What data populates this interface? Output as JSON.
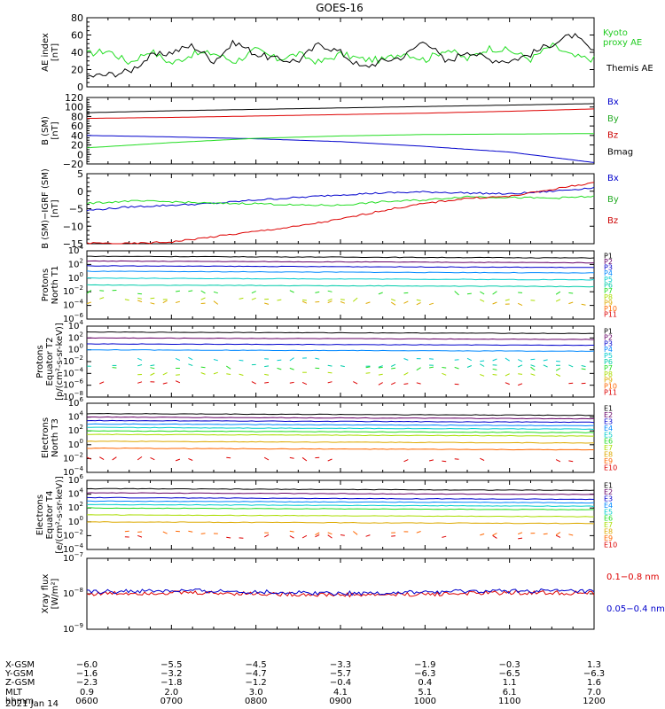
{
  "title": "GOES-16",
  "colors": {
    "black": "#000000",
    "green": "#22dd22",
    "blue": "#0000cc",
    "red": "#dd0000",
    "white": "#ffffff"
  },
  "chart_data": [
    {
      "type": "line",
      "ylabel_lines": [
        "AE index",
        "[nT]"
      ],
      "ylim": [
        0,
        80
      ],
      "yticks": [
        "0",
        "20",
        "40",
        "60",
        "80"
      ],
      "legend": [
        {
          "text": "Kyoto",
          "color": "#22cc22"
        },
        {
          "text": "proxy AE",
          "color": "#22cc22"
        },
        {
          "text": "Themis AE",
          "color": "#000000"
        }
      ],
      "series": [
        {
          "name": "Kyoto proxy AE",
          "color": "#22dd22",
          "x": [
            "0600",
            "0615",
            "0630",
            "0645",
            "0700",
            "0715",
            "0730",
            "0745",
            "0800",
            "0815",
            "0830",
            "0845",
            "0900",
            "0915",
            "0930",
            "0945",
            "1000",
            "1015",
            "1030",
            "1045",
            "1100",
            "1115",
            "1130",
            "1145",
            "1200"
          ],
          "values": [
            38,
            42,
            28,
            42,
            27,
            38,
            39,
            29,
            43,
            32,
            38,
            28,
            38,
            32,
            31,
            40,
            31,
            44,
            32,
            45,
            42,
            32,
            48,
            35,
            32
          ]
        },
        {
          "name": "Themis AE",
          "color": "#000000",
          "x": [
            "0600",
            "0615",
            "0630",
            "0645",
            "0700",
            "0715",
            "0730",
            "0745",
            "0800",
            "0815",
            "0830",
            "0845",
            "0900",
            "0915",
            "0930",
            "0945",
            "1000",
            "1015",
            "1030",
            "1045",
            "1100",
            "1115",
            "1130",
            "1145",
            "1200"
          ],
          "values": [
            12,
            14,
            18,
            35,
            40,
            48,
            30,
            52,
            38,
            32,
            30,
            50,
            40,
            22,
            30,
            35,
            55,
            28,
            42,
            32,
            30,
            38,
            50,
            60,
            40
          ]
        }
      ]
    },
    {
      "type": "line",
      "ylabel_lines": [
        "B (SM)",
        "[nT]"
      ],
      "ylim": [
        -20,
        120
      ],
      "yticks": [
        "−20",
        "0",
        "20",
        "40",
        "60",
        "80",
        "100",
        "120"
      ],
      "legend": [
        {
          "text": "Bx",
          "color": "#0000cc"
        },
        {
          "text": "By",
          "color": "#22aa22"
        },
        {
          "text": "Bz",
          "color": "#cc0000"
        },
        {
          "text": "Bmag",
          "color": "#000000"
        }
      ],
      "series": [
        {
          "name": "Bx",
          "color": "#0000cc",
          "x": [
            "0600",
            "0700",
            "0800",
            "0900",
            "1000",
            "1100",
            "1200"
          ],
          "values": [
            40,
            37,
            33,
            27,
            17,
            5,
            -17
          ]
        },
        {
          "name": "By",
          "color": "#22dd22",
          "x": [
            "0600",
            "0700",
            "0800",
            "0900",
            "1000",
            "1100",
            "1200"
          ],
          "values": [
            14,
            25,
            34,
            39,
            42,
            43,
            44
          ]
        },
        {
          "name": "Bz",
          "color": "#dd0000",
          "x": [
            "0600",
            "0700",
            "0800",
            "0900",
            "1000",
            "1100",
            "1200"
          ],
          "values": [
            76,
            78,
            81,
            84,
            87,
            91,
            96
          ]
        },
        {
          "name": "Bmag",
          "color": "#000000",
          "x": [
            "0600",
            "0700",
            "0800",
            "0900",
            "1000",
            "1100",
            "1200"
          ],
          "values": [
            88,
            92,
            95,
            98,
            101,
            104,
            107
          ]
        }
      ]
    },
    {
      "type": "line",
      "ylabel_lines": [
        "B (SM)−IGRF (SM)",
        "[nT]"
      ],
      "ylim": [
        -15,
        5
      ],
      "yticks": [
        "−15",
        "−10",
        "−5",
        "0",
        "5"
      ],
      "legend": [
        {
          "text": "Bx",
          "color": "#0000cc"
        },
        {
          "text": "By",
          "color": "#22aa22"
        },
        {
          "text": "Bz",
          "color": "#cc0000"
        }
      ],
      "series": [
        {
          "name": "Bx",
          "color": "#0000cc",
          "x": [
            "0600",
            "0630",
            "0700",
            "0730",
            "0800",
            "0830",
            "0900",
            "0930",
            "1000",
            "1030",
            "1100",
            "1130",
            "1200"
          ],
          "values": [
            -5.5,
            -4.5,
            -4,
            -3.5,
            -2.5,
            -1.8,
            -1,
            -0.5,
            -0.2,
            -0.5,
            -0.8,
            0,
            1
          ]
        },
        {
          "name": "By",
          "color": "#22dd22",
          "x": [
            "0600",
            "0630",
            "0700",
            "0730",
            "0800",
            "0830",
            "0900",
            "0930",
            "1000",
            "1030",
            "1100",
            "1130",
            "1200"
          ],
          "values": [
            -3.5,
            -2.8,
            -3,
            -3.5,
            -3.5,
            -4,
            -4,
            -3,
            -2.5,
            -1.5,
            -1.8,
            -2,
            -1.5
          ]
        },
        {
          "name": "Bz",
          "color": "#dd0000",
          "x": [
            "0600",
            "0630",
            "0700",
            "0730",
            "0800",
            "0830",
            "0900",
            "0930",
            "1000",
            "1030",
            "1100",
            "1130",
            "1200"
          ],
          "values": [
            -14.8,
            -15,
            -14.5,
            -13,
            -11.5,
            -10,
            -8,
            -5.5,
            -3.5,
            -2,
            -1.5,
            0.5,
            2.5
          ]
        }
      ]
    },
    {
      "type": "line",
      "log": true,
      "ylabel_lines": [
        "Protons",
        "North T1"
      ],
      "ylim_exp": [
        -6,
        4
      ],
      "ytick_exps": [
        -6,
        -4,
        -2,
        0,
        2,
        4
      ],
      "channels": [
        {
          "label": "P1",
          "color": "#000000",
          "level": 3.2
        },
        {
          "label": "P2",
          "color": "#660066",
          "level": 2.5
        },
        {
          "label": "P3",
          "color": "#0000cc",
          "level": 1.8
        },
        {
          "label": "P4",
          "color": "#0088ff",
          "level": 1.0
        },
        {
          "label": "P5",
          "color": "#00cccc",
          "level": 0.0
        },
        {
          "label": "P6",
          "color": "#00ccaa",
          "level": -1.0
        },
        {
          "label": "P7",
          "color": "#22dd22",
          "level": -2.0
        },
        {
          "label": "P8",
          "color": "#aadd00",
          "level": -3.0
        },
        {
          "label": "P9",
          "color": "#ddaa00",
          "level": -3.5
        },
        {
          "label": "P10",
          "color": "#ff6600",
          "level": null
        },
        {
          "label": "P11",
          "color": "#dd0000",
          "level": null
        }
      ]
    },
    {
      "type": "line",
      "log": true,
      "ylabel_lines": [
        "Protons",
        "Equator T2",
        "[p/(cm²-s-sr-keV)]"
      ],
      "ylim_exp": [
        -8,
        4
      ],
      "ytick_exps": [
        -8,
        -6,
        -4,
        -2,
        0,
        2,
        4
      ],
      "channels": [
        {
          "label": "P1",
          "color": "#000000",
          "level": 3.0
        },
        {
          "label": "P2",
          "color": "#660066",
          "level": 2.0
        },
        {
          "label": "P3",
          "color": "#0000cc",
          "level": 1.0
        },
        {
          "label": "P4",
          "color": "#0088ff",
          "level": 0.0
        },
        {
          "label": "P5",
          "color": "#00cccc",
          "level": -1.5
        },
        {
          "label": "P6",
          "color": "#00ccaa",
          "level": -2.5
        },
        {
          "label": "P7",
          "color": "#22dd22",
          "level": -3.0
        },
        {
          "label": "P8",
          "color": "#aadd00",
          "level": -4.0
        },
        {
          "label": "P9",
          "color": "#ddaa00",
          "level": null
        },
        {
          "label": "P10",
          "color": "#ff6600",
          "level": null
        },
        {
          "label": "P11",
          "color": "#dd0000",
          "level": -5.5
        }
      ]
    },
    {
      "type": "line",
      "log": true,
      "ylabel_lines": [
        "Electrons",
        "North T3"
      ],
      "ylim_exp": [
        -4,
        6
      ],
      "ytick_exps": [
        -4,
        -2,
        0,
        2,
        4,
        6
      ],
      "channels": [
        {
          "label": "E1",
          "color": "#000000",
          "level": 4.5
        },
        {
          "label": "E2",
          "color": "#660066",
          "level": 4.0
        },
        {
          "label": "E3",
          "color": "#0000cc",
          "level": 3.5
        },
        {
          "label": "E4",
          "color": "#0088ff",
          "level": 3.0
        },
        {
          "label": "E5",
          "color": "#00cccc",
          "level": 2.5
        },
        {
          "label": "E6",
          "color": "#22dd22",
          "level": 2.0
        },
        {
          "label": "E7",
          "color": "#aadd00",
          "level": 1.5
        },
        {
          "label": "E8",
          "color": "#ddaa00",
          "level": 0.5
        },
        {
          "label": "E9",
          "color": "#ff6600",
          "level": -0.5
        },
        {
          "label": "E10",
          "color": "#dd0000",
          "level": -2.0
        }
      ]
    },
    {
      "type": "line",
      "log": true,
      "ylabel_lines": [
        "Electrons",
        "Equator T4",
        "[e/(cm²-s-sr-keV)]"
      ],
      "ylim_exp": [
        -4,
        6
      ],
      "ytick_exps": [
        -4,
        -2,
        0,
        2,
        4,
        6
      ],
      "channels": [
        {
          "label": "E1",
          "color": "#000000",
          "level": 4.8
        },
        {
          "label": "E2",
          "color": "#660066",
          "level": 4.2
        },
        {
          "label": "E3",
          "color": "#0000cc",
          "level": 3.5
        },
        {
          "label": "E4",
          "color": "#0088ff",
          "level": 3.0
        },
        {
          "label": "E5",
          "color": "#00cccc",
          "level": 2.5
        },
        {
          "label": "E6",
          "color": "#22dd22",
          "level": 2.0
        },
        {
          "label": "E7",
          "color": "#aadd00",
          "level": 1.0
        },
        {
          "label": "E8",
          "color": "#ddaa00",
          "level": 0.0
        },
        {
          "label": "E9",
          "color": "#ff6600",
          "level": -1.5
        },
        {
          "label": "E10",
          "color": "#dd0000",
          "level": -2.0
        }
      ]
    },
    {
      "type": "line",
      "log": true,
      "ylabel_lines": [
        "Xray flux",
        "[W/m²]"
      ],
      "ylim_exp": [
        -9,
        -7
      ],
      "ytick_exps": [
        -9,
        -8,
        -7
      ],
      "legend": [
        {
          "text": "0.1−0.8 nm",
          "color": "#dd0000"
        },
        {
          "text": "0.05−0.4 nm",
          "color": "#0000cc"
        }
      ],
      "series": [
        {
          "name": "0.1−0.8 nm",
          "color": "#dd0000",
          "level": -8.0
        },
        {
          "name": "0.05−0.4 nm",
          "color": "#0000cc",
          "level": -7.95
        }
      ]
    }
  ],
  "xaxis": {
    "row_labels": [
      "X-GSM",
      "Y-GSM",
      "Z-GSM",
      "MLT",
      "hhmm"
    ],
    "date": "2021 Jan 14",
    "ticks": [
      {
        "values": [
          "−6.0",
          "−1.6",
          "−2.3",
          "0.9",
          "0600"
        ]
      },
      {
        "values": [
          "−5.5",
          "−3.2",
          "−1.8",
          "2.0",
          "0700"
        ]
      },
      {
        "values": [
          "−4.5",
          "−4.7",
          "−1.2",
          "3.0",
          "0800"
        ]
      },
      {
        "values": [
          "−3.3",
          "−5.7",
          "−0.4",
          "4.1",
          "0900"
        ]
      },
      {
        "values": [
          "−1.9",
          "−6.3",
          "0.4",
          "5.1",
          "1000"
        ]
      },
      {
        "values": [
          "−0.3",
          "−6.5",
          "1.1",
          "6.1",
          "1100"
        ]
      },
      {
        "values": [
          "1.3",
          "−6.3",
          "1.6",
          "7.0",
          "1200"
        ]
      }
    ]
  }
}
